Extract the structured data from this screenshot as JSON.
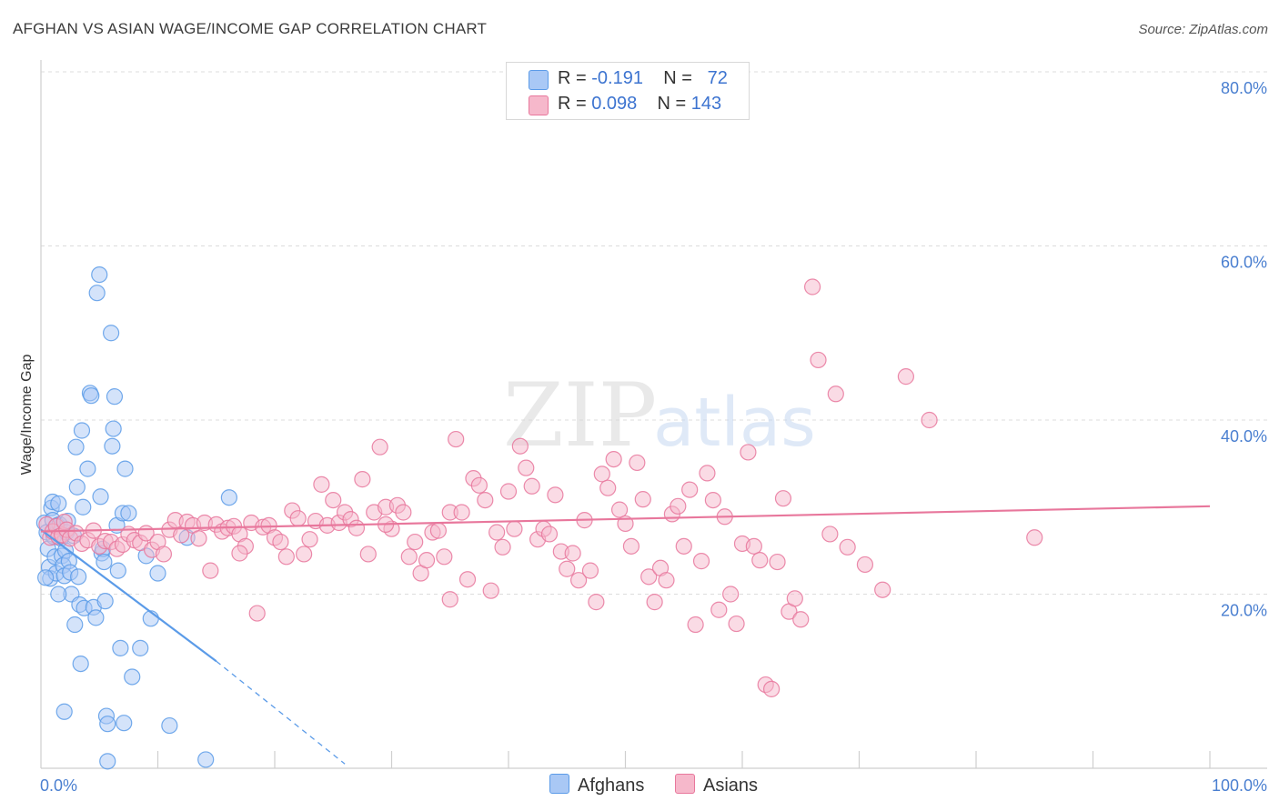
{
  "header": {
    "title": "AFGHAN VS ASIAN WAGE/INCOME GAP CORRELATION CHART",
    "source": "Source: ZipAtlas.com"
  },
  "watermark": {
    "zip": "ZIP",
    "atlas": "atlas"
  },
  "legend": {
    "rows": [
      {
        "r_label": "R = ",
        "r_value": "-0.191",
        "n_label": "N = ",
        "n_value": "72",
        "color": "#a9c8f5"
      },
      {
        "r_label": "R = ",
        "r_value": "0.098",
        "n_label": "N = ",
        "n_value": "143",
        "color": "#f6b8cb"
      }
    ]
  },
  "bottom_legend": [
    {
      "label": "Afghans",
      "color": "#a9c8f5"
    },
    {
      "label": "Asians",
      "color": "#f6b8cb"
    }
  ],
  "chart_data": {
    "type": "scatter",
    "title": "AFGHAN VS ASIAN WAGE/INCOME GAP CORRELATION CHART",
    "xlabel": "",
    "ylabel": "Wage/Income Gap",
    "xlim": [
      0,
      100
    ],
    "ylim": [
      0,
      80
    ],
    "x_tick_labels": [
      "0.0%",
      "100.0%"
    ],
    "y_ticks": [
      20,
      40,
      60,
      80
    ],
    "y_tick_labels": [
      "20.0%",
      "40.0%",
      "60.0%",
      "80.0%"
    ],
    "grid": true,
    "series": [
      {
        "name": "Afghans",
        "color": "#5b9be8",
        "fill": "#a9c8f5",
        "r": -0.191,
        "n": 72,
        "trend": {
          "x": [
            0,
            15
          ],
          "y": [
            27.4,
            12.3
          ],
          "dash_to": [
            26,
            0.5
          ]
        },
        "points": [
          [
            0.3,
            28.2
          ],
          [
            0.5,
            27.1
          ],
          [
            0.6,
            25.2
          ],
          [
            0.7,
            23.1
          ],
          [
            0.8,
            21.8
          ],
          [
            0.9,
            29.9
          ],
          [
            1.0,
            30.6
          ],
          [
            1.0,
            28.5
          ],
          [
            1.1,
            26.6
          ],
          [
            1.2,
            24.3
          ],
          [
            1.3,
            22.4
          ],
          [
            1.4,
            27.9
          ],
          [
            1.5,
            30.4
          ],
          [
            1.6,
            28.0
          ],
          [
            1.7,
            26.4
          ],
          [
            1.8,
            24.4
          ],
          [
            1.9,
            23.3
          ],
          [
            2.0,
            22.1
          ],
          [
            2.1,
            25.0
          ],
          [
            2.2,
            27.1
          ],
          [
            2.3,
            28.4
          ],
          [
            2.4,
            23.8
          ],
          [
            2.5,
            22.5
          ],
          [
            2.6,
            20.0
          ],
          [
            2.8,
            26.7
          ],
          [
            3.0,
            36.9
          ],
          [
            3.1,
            32.3
          ],
          [
            3.2,
            22.0
          ],
          [
            3.3,
            18.8
          ],
          [
            3.5,
            38.8
          ],
          [
            3.6,
            30.0
          ],
          [
            3.7,
            18.4
          ],
          [
            4.0,
            34.4
          ],
          [
            4.2,
            43.1
          ],
          [
            4.3,
            42.8
          ],
          [
            4.5,
            18.5
          ],
          [
            4.7,
            17.3
          ],
          [
            4.8,
            54.6
          ],
          [
            5.0,
            56.7
          ],
          [
            5.1,
            31.2
          ],
          [
            5.2,
            24.7
          ],
          [
            5.3,
            25.2
          ],
          [
            5.4,
            23.7
          ],
          [
            5.5,
            19.2
          ],
          [
            5.6,
            6.0
          ],
          [
            5.7,
            5.1
          ],
          [
            6.0,
            50.0
          ],
          [
            6.1,
            37.0
          ],
          [
            6.2,
            39.0
          ],
          [
            6.3,
            42.7
          ],
          [
            6.5,
            27.9
          ],
          [
            6.6,
            22.7
          ],
          [
            6.8,
            13.8
          ],
          [
            7.0,
            29.3
          ],
          [
            7.2,
            34.4
          ],
          [
            7.5,
            29.3
          ],
          [
            7.8,
            10.5
          ],
          [
            8.5,
            13.8
          ],
          [
            9.0,
            24.4
          ],
          [
            9.4,
            17.2
          ],
          [
            10.0,
            22.4
          ],
          [
            12.5,
            26.5
          ],
          [
            16.1,
            31.1
          ],
          [
            7.1,
            5.2
          ],
          [
            11.0,
            4.9
          ],
          [
            2.0,
            6.5
          ],
          [
            5.7,
            0.8
          ],
          [
            14.1,
            1.0
          ],
          [
            3.4,
            12.0
          ],
          [
            1.5,
            20.0
          ],
          [
            0.4,
            21.9
          ],
          [
            2.9,
            16.5
          ]
        ]
      },
      {
        "name": "Asians",
        "color": "#e8779c",
        "fill": "#f6b8cb",
        "r": 0.098,
        "n": 143,
        "trend": {
          "x": [
            0,
            100
          ],
          "y": [
            27.2,
            30.1
          ]
        },
        "points": [
          [
            0.5,
            28.0
          ],
          [
            0.8,
            26.5
          ],
          [
            1.0,
            27.2
          ],
          [
            1.3,
            27.8
          ],
          [
            1.5,
            26.6
          ],
          [
            1.8,
            26.8
          ],
          [
            2.0,
            28.3
          ],
          [
            2.2,
            27.4
          ],
          [
            2.5,
            26.4
          ],
          [
            3.0,
            27.0
          ],
          [
            3.5,
            25.8
          ],
          [
            4.0,
            26.2
          ],
          [
            4.5,
            27.3
          ],
          [
            5.0,
            25.5
          ],
          [
            5.5,
            26.1
          ],
          [
            6.0,
            26.0
          ],
          [
            6.5,
            25.2
          ],
          [
            7.0,
            25.7
          ],
          [
            7.5,
            26.9
          ],
          [
            8.0,
            26.2
          ],
          [
            8.5,
            25.9
          ],
          [
            9.0,
            27.0
          ],
          [
            9.5,
            25.1
          ],
          [
            10.0,
            26.0
          ],
          [
            10.5,
            24.6
          ],
          [
            11.0,
            27.4
          ],
          [
            11.5,
            28.5
          ],
          [
            12.0,
            26.8
          ],
          [
            12.5,
            28.3
          ],
          [
            13.0,
            27.9
          ],
          [
            13.5,
            26.4
          ],
          [
            14.0,
            28.2
          ],
          [
            14.5,
            22.7
          ],
          [
            15.0,
            28.0
          ],
          [
            15.5,
            27.2
          ],
          [
            16.0,
            27.6
          ],
          [
            16.5,
            27.8
          ],
          [
            17.0,
            26.9
          ],
          [
            17.5,
            25.5
          ],
          [
            18.0,
            28.2
          ],
          [
            18.5,
            17.8
          ],
          [
            19.0,
            27.7
          ],
          [
            19.5,
            27.9
          ],
          [
            20.0,
            26.5
          ],
          [
            20.5,
            26.0
          ],
          [
            21.0,
            24.3
          ],
          [
            21.5,
            29.6
          ],
          [
            22.0,
            28.7
          ],
          [
            22.5,
            24.6
          ],
          [
            23.0,
            26.3
          ],
          [
            23.5,
            28.4
          ],
          [
            24.0,
            32.6
          ],
          [
            24.5,
            27.9
          ],
          [
            25.0,
            30.8
          ],
          [
            25.5,
            28.2
          ],
          [
            26.0,
            29.4
          ],
          [
            26.5,
            28.6
          ],
          [
            27.0,
            27.6
          ],
          [
            27.5,
            33.2
          ],
          [
            28.0,
            24.6
          ],
          [
            28.5,
            29.4
          ],
          [
            29.0,
            36.9
          ],
          [
            29.5,
            30.0
          ],
          [
            30.0,
            27.5
          ],
          [
            30.5,
            30.2
          ],
          [
            31.0,
            29.4
          ],
          [
            31.5,
            24.3
          ],
          [
            32.0,
            26.0
          ],
          [
            32.5,
            22.4
          ],
          [
            33.0,
            23.9
          ],
          [
            33.5,
            27.1
          ],
          [
            34.0,
            27.3
          ],
          [
            34.5,
            24.3
          ],
          [
            35.0,
            29.4
          ],
          [
            35.5,
            37.8
          ],
          [
            36.0,
            29.4
          ],
          [
            36.5,
            21.7
          ],
          [
            37.0,
            33.3
          ],
          [
            37.5,
            32.5
          ],
          [
            38.0,
            30.8
          ],
          [
            38.5,
            20.4
          ],
          [
            39.0,
            27.1
          ],
          [
            39.5,
            25.4
          ],
          [
            40.0,
            31.8
          ],
          [
            40.5,
            27.5
          ],
          [
            41.0,
            37.0
          ],
          [
            41.5,
            34.5
          ],
          [
            42.0,
            32.4
          ],
          [
            42.5,
            26.3
          ],
          [
            43.0,
            27.5
          ],
          [
            43.5,
            26.9
          ],
          [
            44.0,
            31.4
          ],
          [
            44.5,
            24.9
          ],
          [
            45.0,
            22.9
          ],
          [
            45.5,
            24.7
          ],
          [
            46.0,
            21.6
          ],
          [
            46.5,
            28.5
          ],
          [
            47.0,
            22.7
          ],
          [
            47.5,
            19.1
          ],
          [
            48.0,
            33.8
          ],
          [
            48.5,
            32.2
          ],
          [
            49.0,
            35.5
          ],
          [
            49.5,
            29.7
          ],
          [
            50.0,
            28.1
          ],
          [
            50.5,
            25.5
          ],
          [
            51.0,
            35.1
          ],
          [
            51.5,
            30.9
          ],
          [
            52.0,
            22.0
          ],
          [
            52.5,
            19.1
          ],
          [
            53.0,
            23.0
          ],
          [
            53.5,
            21.6
          ],
          [
            54.0,
            29.2
          ],
          [
            54.5,
            30.1
          ],
          [
            55.0,
            25.5
          ],
          [
            55.5,
            32.0
          ],
          [
            56.0,
            16.5
          ],
          [
            56.5,
            23.8
          ],
          [
            57.0,
            33.9
          ],
          [
            57.5,
            30.8
          ],
          [
            58.0,
            18.2
          ],
          [
            58.5,
            28.9
          ],
          [
            59.0,
            20.0
          ],
          [
            59.5,
            16.6
          ],
          [
            60.0,
            25.8
          ],
          [
            60.5,
            36.3
          ],
          [
            61.0,
            25.5
          ],
          [
            61.5,
            23.9
          ],
          [
            62.0,
            9.6
          ],
          [
            62.5,
            9.1
          ],
          [
            63.0,
            23.7
          ],
          [
            63.5,
            31.0
          ],
          [
            64.0,
            18.0
          ],
          [
            64.5,
            19.5
          ],
          [
            65.0,
            17.1
          ],
          [
            66.0,
            55.3
          ],
          [
            66.5,
            46.9
          ],
          [
            67.5,
            26.9
          ],
          [
            68.0,
            43.0
          ],
          [
            69.0,
            25.4
          ],
          [
            70.5,
            23.4
          ],
          [
            72.0,
            20.5
          ],
          [
            74.0,
            45.0
          ],
          [
            76.0,
            40.0
          ],
          [
            85.0,
            26.5
          ],
          [
            17.0,
            24.7
          ],
          [
            29.5,
            28.0
          ],
          [
            35.0,
            19.4
          ]
        ]
      }
    ]
  }
}
